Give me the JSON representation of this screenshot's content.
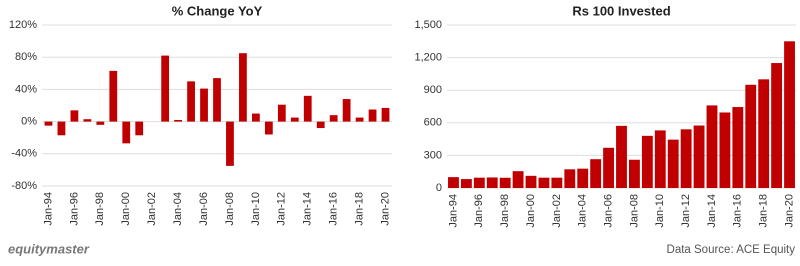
{
  "chart_data": [
    {
      "type": "bar",
      "title": "% Change YoY",
      "categories": [
        "Jan-94",
        null,
        "Jan-96",
        null,
        "Jan-98",
        null,
        "Jan-00",
        null,
        "Jan-02",
        null,
        "Jan-04",
        null,
        "Jan-06",
        null,
        "Jan-08",
        null,
        "Jan-10",
        null,
        "Jan-12",
        null,
        "Jan-14",
        null,
        "Jan-16",
        null,
        "Jan-18",
        null,
        "Jan-20"
      ],
      "values": [
        -5,
        -17,
        14,
        3,
        -4,
        63,
        -27,
        -17,
        0,
        82,
        2,
        50,
        41,
        54,
        -55,
        85,
        10,
        -16,
        21,
        5,
        32,
        -8,
        8,
        28,
        5,
        15,
        17
      ],
      "color": "#c00000",
      "ylim": [
        -80,
        120
      ],
      "yticks": [
        {
          "value": -80,
          "label": "-80%"
        },
        {
          "value": -40,
          "label": "-40%"
        },
        {
          "value": 0,
          "label": "0%"
        },
        {
          "value": 40,
          "label": "40%"
        },
        {
          "value": 80,
          "label": "80%"
        },
        {
          "value": 120,
          "label": "120%"
        }
      ],
      "grid": true
    },
    {
      "type": "bar",
      "title": "Rs 100 Invested",
      "categories": [
        "Jan-94",
        null,
        "Jan-96",
        null,
        "Jan-98",
        null,
        "Jan-00",
        null,
        "Jan-02",
        null,
        "Jan-04",
        null,
        "Jan-06",
        null,
        "Jan-08",
        null,
        "Jan-10",
        null,
        "Jan-12",
        null,
        "Jan-14",
        null,
        "Jan-16",
        null,
        "Jan-18",
        null,
        "Jan-20"
      ],
      "values": [
        100,
        82,
        95,
        97,
        94,
        155,
        112,
        95,
        95,
        172,
        178,
        265,
        370,
        572,
        260,
        480,
        530,
        445,
        540,
        575,
        760,
        695,
        745,
        950,
        1000,
        1150,
        1350
      ],
      "color": "#c00000",
      "ylim": [
        0,
        1500
      ],
      "yticks": [
        0,
        300,
        600,
        900,
        {
          "value": 1200,
          "label": "1,200"
        },
        {
          "value": 1500,
          "label": "1,500"
        }
      ],
      "grid": true
    }
  ],
  "brand": "equitymaster",
  "source": "Data Source: ACE Equity"
}
